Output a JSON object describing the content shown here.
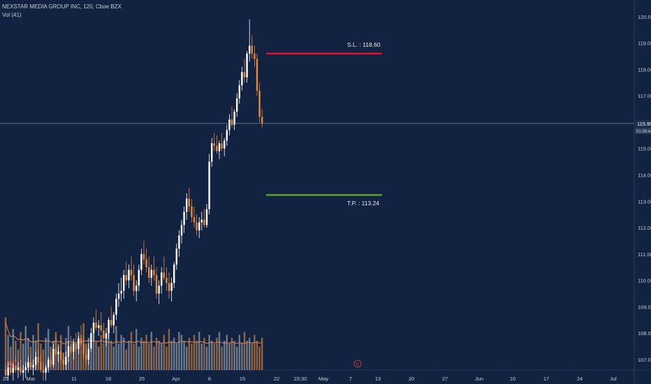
{
  "header": {
    "symbol_line": "NEXSTAR MEDIA GROUP INC, 120, Cboe BZX",
    "volume_line": "Vol (41)"
  },
  "colors": {
    "background": "#112341",
    "up_candle": "#ffffff",
    "down_candle": "#e8893a",
    "stop_loss": "#e3112b",
    "take_profit": "#5c9c32",
    "crosshair": "#8a96ab",
    "volume_up": "#8b96a6",
    "volume_down": "#c07a3e",
    "volume_ma": "#e0865a"
  },
  "price_axis": {
    "ticks": [
      "120.00",
      "119.00",
      "118.00",
      "117.00",
      "116.00",
      "115.00",
      "114.00",
      "113.00",
      "112.00",
      "111.00",
      "110.00",
      "109.00",
      "108.00",
      "107.00"
    ],
    "current_price": "115.95",
    "countdown": "01:08:44"
  },
  "time_axis": {
    "ticks": [
      "25",
      "Mar",
      "11",
      "18",
      "25",
      "Apr",
      "8",
      "15",
      "22",
      "23:30",
      "May",
      "7",
      "13",
      "20",
      "27",
      "Jun",
      "10",
      "17",
      "24",
      "Jul"
    ]
  },
  "earnings_markers": [
    "E",
    "E"
  ],
  "levels": {
    "stop_loss": {
      "label": "S.L. : 118.60",
      "price": 118.6
    },
    "take_profit": {
      "label": "T.P. : 113.24",
      "price": 113.24
    }
  },
  "chart_data": {
    "type": "candlestick",
    "title": "NEXSTAR MEDIA GROUP INC, 120, Cboe BZX",
    "ylim": [
      106.6,
      120.5
    ],
    "x_range": [
      "Feb 25",
      "Jul"
    ],
    "grid": false,
    "current_price": 115.95,
    "candles": [
      [
        106.6,
        106.8,
        106.3,
        106.4
      ],
      [
        106.4,
        106.9,
        106.2,
        106.7
      ],
      [
        106.7,
        107.0,
        106.4,
        106.5
      ],
      [
        106.5,
        106.9,
        106.2,
        106.8
      ],
      [
        106.8,
        107.1,
        106.5,
        106.6
      ],
      [
        106.6,
        106.9,
        106.3,
        106.7
      ],
      [
        106.7,
        107.0,
        106.4,
        106.5
      ],
      [
        106.5,
        106.8,
        106.2,
        106.6
      ],
      [
        106.6,
        106.9,
        106.3,
        106.7
      ],
      [
        106.7,
        107.1,
        106.5,
        106.9
      ],
      [
        106.9,
        107.2,
        106.6,
        106.7
      ],
      [
        106.7,
        107.0,
        106.4,
        106.8
      ],
      [
        106.8,
        107.3,
        106.6,
        107.1
      ],
      [
        107.1,
        107.4,
        106.8,
        106.9
      ],
      [
        106.9,
        107.2,
        106.5,
        106.6
      ],
      [
        106.6,
        106.9,
        106.2,
        106.5
      ],
      [
        106.5,
        106.8,
        106.2,
        106.7
      ],
      [
        106.7,
        107.1,
        106.5,
        107.0
      ],
      [
        107.0,
        107.3,
        106.7,
        106.8
      ],
      [
        106.8,
        107.6,
        106.7,
        107.4
      ],
      [
        107.4,
        107.8,
        107.1,
        107.2
      ],
      [
        107.2,
        107.5,
        106.9,
        107.3
      ],
      [
        107.3,
        107.6,
        106.9,
        107.0
      ],
      [
        107.0,
        107.2,
        106.6,
        106.8
      ],
      [
        106.8,
        107.3,
        106.6,
        107.1
      ],
      [
        107.1,
        107.7,
        106.9,
        107.5
      ],
      [
        107.5,
        107.9,
        107.2,
        107.3
      ],
      [
        107.3,
        107.8,
        107.0,
        107.6
      ],
      [
        107.6,
        108.0,
        107.3,
        107.4
      ],
      [
        107.4,
        107.9,
        107.2,
        107.8
      ],
      [
        107.8,
        108.3,
        107.5,
        107.6
      ],
      [
        107.6,
        107.9,
        107.0,
        107.2
      ],
      [
        107.2,
        107.5,
        106.8,
        107.0
      ],
      [
        107.0,
        107.6,
        106.8,
        107.4
      ],
      [
        107.4,
        108.2,
        107.3,
        108.0
      ],
      [
        108.0,
        108.6,
        107.7,
        108.4
      ],
      [
        108.4,
        108.9,
        108.1,
        108.2
      ],
      [
        108.2,
        108.5,
        107.9,
        108.3
      ],
      [
        108.3,
        108.8,
        108.0,
        108.1
      ],
      [
        108.1,
        108.4,
        107.6,
        107.8
      ],
      [
        107.8,
        108.2,
        107.5,
        108.0
      ],
      [
        108.0,
        108.6,
        107.8,
        108.5
      ],
      [
        108.5,
        109.0,
        108.2,
        108.3
      ],
      [
        108.3,
        108.8,
        108.0,
        108.7
      ],
      [
        108.7,
        109.5,
        108.5,
        109.3
      ],
      [
        109.3,
        109.9,
        109.0,
        109.5
      ],
      [
        109.5,
        110.1,
        109.2,
        109.6
      ],
      [
        109.6,
        110.4,
        109.3,
        110.2
      ],
      [
        110.2,
        110.7,
        109.8,
        110.0
      ],
      [
        110.0,
        110.6,
        109.7,
        110.4
      ],
      [
        110.4,
        110.9,
        110.0,
        110.2
      ],
      [
        110.2,
        110.6,
        109.4,
        109.6
      ],
      [
        109.6,
        110.0,
        109.2,
        109.8
      ],
      [
        109.8,
        110.6,
        109.6,
        110.4
      ],
      [
        110.4,
        111.2,
        110.2,
        111.0
      ],
      [
        111.0,
        111.5,
        110.6,
        110.8
      ],
      [
        110.8,
        111.2,
        110.3,
        110.5
      ],
      [
        110.5,
        110.9,
        109.9,
        110.1
      ],
      [
        110.1,
        110.6,
        109.8,
        110.4
      ],
      [
        110.4,
        110.9,
        110.0,
        110.2
      ],
      [
        110.2,
        110.5,
        109.3,
        109.5
      ],
      [
        109.5,
        110.0,
        109.1,
        109.8
      ],
      [
        109.8,
        110.5,
        109.5,
        110.3
      ],
      [
        110.3,
        110.9,
        110.0,
        110.1
      ],
      [
        110.1,
        110.5,
        109.6,
        109.9
      ],
      [
        109.9,
        110.3,
        109.3,
        109.6
      ],
      [
        109.6,
        110.1,
        109.2,
        109.9
      ],
      [
        109.9,
        110.7,
        109.7,
        110.6
      ],
      [
        110.6,
        111.4,
        110.4,
        111.2
      ],
      [
        111.2,
        111.9,
        110.9,
        111.7
      ],
      [
        111.7,
        112.3,
        111.4,
        112.1
      ],
      [
        112.1,
        112.8,
        111.8,
        112.6
      ],
      [
        112.6,
        113.3,
        112.3,
        113.1
      ],
      [
        113.1,
        113.5,
        112.6,
        112.8
      ],
      [
        112.8,
        113.1,
        112.2,
        112.4
      ],
      [
        112.4,
        112.8,
        112.0,
        112.2
      ],
      [
        112.2,
        112.5,
        111.7,
        111.9
      ],
      [
        111.9,
        112.4,
        111.6,
        112.2
      ],
      [
        112.2,
        112.6,
        111.9,
        112.3
      ],
      [
        112.3,
        112.7,
        112.0,
        112.1
      ],
      [
        112.1,
        112.9,
        112.0,
        112.7
      ],
      [
        112.7,
        114.8,
        112.5,
        114.5
      ],
      [
        114.5,
        115.4,
        114.3,
        115.2
      ],
      [
        115.2,
        115.6,
        114.9,
        115.1
      ],
      [
        115.1,
        115.5,
        114.8,
        114.9
      ],
      [
        114.9,
        115.3,
        114.6,
        115.2
      ],
      [
        115.2,
        115.6,
        114.9,
        115.0
      ],
      [
        115.0,
        115.4,
        114.7,
        115.3
      ],
      [
        115.3,
        115.9,
        115.1,
        115.7
      ],
      [
        115.7,
        116.3,
        115.5,
        116.1
      ],
      [
        116.1,
        116.6,
        115.8,
        115.9
      ],
      [
        115.9,
        116.5,
        115.7,
        116.4
      ],
      [
        116.4,
        117.1,
        116.2,
        116.9
      ],
      [
        116.9,
        117.6,
        116.7,
        117.4
      ],
      [
        117.4,
        118.1,
        117.2,
        117.9
      ],
      [
        117.9,
        118.4,
        117.5,
        117.7
      ],
      [
        117.7,
        118.7,
        117.5,
        118.6
      ],
      [
        118.6,
        119.9,
        118.3,
        118.9
      ],
      [
        118.9,
        119.3,
        118.4,
        118.6
      ],
      [
        118.6,
        118.9,
        118.1,
        118.4
      ],
      [
        118.4,
        118.6,
        117.0,
        117.2
      ],
      [
        117.2,
        117.5,
        116.0,
        116.2
      ],
      [
        116.2,
        116.5,
        115.8,
        115.95
      ]
    ],
    "volume": {
      "values": [
        18,
        12,
        8,
        14,
        10,
        7,
        13,
        9,
        15,
        11,
        8,
        12,
        10,
        16,
        9,
        7,
        11,
        14,
        8,
        10,
        13,
        9,
        12,
        6,
        11,
        15,
        9,
        10,
        8,
        13,
        12,
        16,
        9,
        11,
        7,
        14,
        10,
        8,
        12,
        9,
        11,
        13,
        10,
        8,
        15,
        9,
        12,
        11,
        7,
        10,
        13,
        9,
        14,
        8,
        11,
        10,
        12,
        9,
        13,
        8,
        11,
        10,
        9,
        12,
        8,
        14,
        10,
        11,
        9,
        13,
        12,
        10,
        8,
        11,
        9,
        12,
        10,
        13,
        9,
        11,
        8,
        12,
        10,
        9,
        11,
        13,
        8,
        10,
        12,
        9,
        11,
        10,
        8,
        12,
        9,
        13,
        10,
        11,
        9,
        12,
        10,
        8,
        11
      ],
      "ma_series_name": ""
    }
  }
}
